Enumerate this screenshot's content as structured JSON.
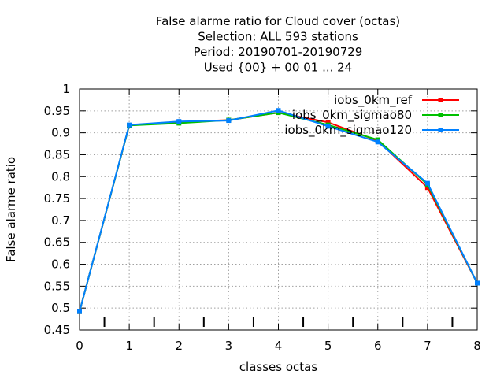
{
  "chart_data": {
    "type": "line",
    "title_lines": [
      "False alarme ratio  for Cloud cover (octas)",
      "Selection: ALL    593 stations",
      "Period: 20190701-20190729",
      "Used {00} + 00 01 ... 24"
    ],
    "xlabel": "classes octas",
    "ylabel": "False alarme ratio",
    "xlim": [
      0,
      8
    ],
    "ylim": [
      0.45,
      1
    ],
    "x_ticks": [
      "0",
      "1",
      "2",
      "3",
      "4",
      "5",
      "6",
      "7",
      "8"
    ],
    "y_ticks": [
      "0.45",
      "0.5",
      "0.55",
      "0.6",
      "0.65",
      "0.7",
      "0.75",
      "0.8",
      "0.85",
      "0.9",
      "0.95",
      "1"
    ],
    "grid": true,
    "legend_position": "top-right",
    "x": [
      0,
      1,
      2,
      3,
      4,
      5,
      6,
      7,
      8
    ],
    "series": [
      {
        "name": "iobs_0km_ref",
        "color": "#ff0000",
        "values": [
          0.492,
          0.917,
          0.925,
          0.929,
          0.946,
          0.924,
          0.882,
          0.775,
          0.557
        ]
      },
      {
        "name": "iobs_0km_sigmao80",
        "color": "#00c000",
        "values": [
          0.492,
          0.917,
          0.922,
          0.929,
          0.946,
          0.918,
          0.884,
          0.782,
          0.557
        ]
      },
      {
        "name": "iobs_0km_sigmao120",
        "color": "#0080ff",
        "values": [
          0.492,
          0.918,
          0.926,
          0.928,
          0.951,
          0.915,
          0.879,
          0.785,
          0.557
        ]
      }
    ],
    "extra_ticks_x": [
      0.5,
      1.5,
      2.5,
      3.5,
      4.5,
      5.5,
      6.5,
      7.5
    ]
  }
}
